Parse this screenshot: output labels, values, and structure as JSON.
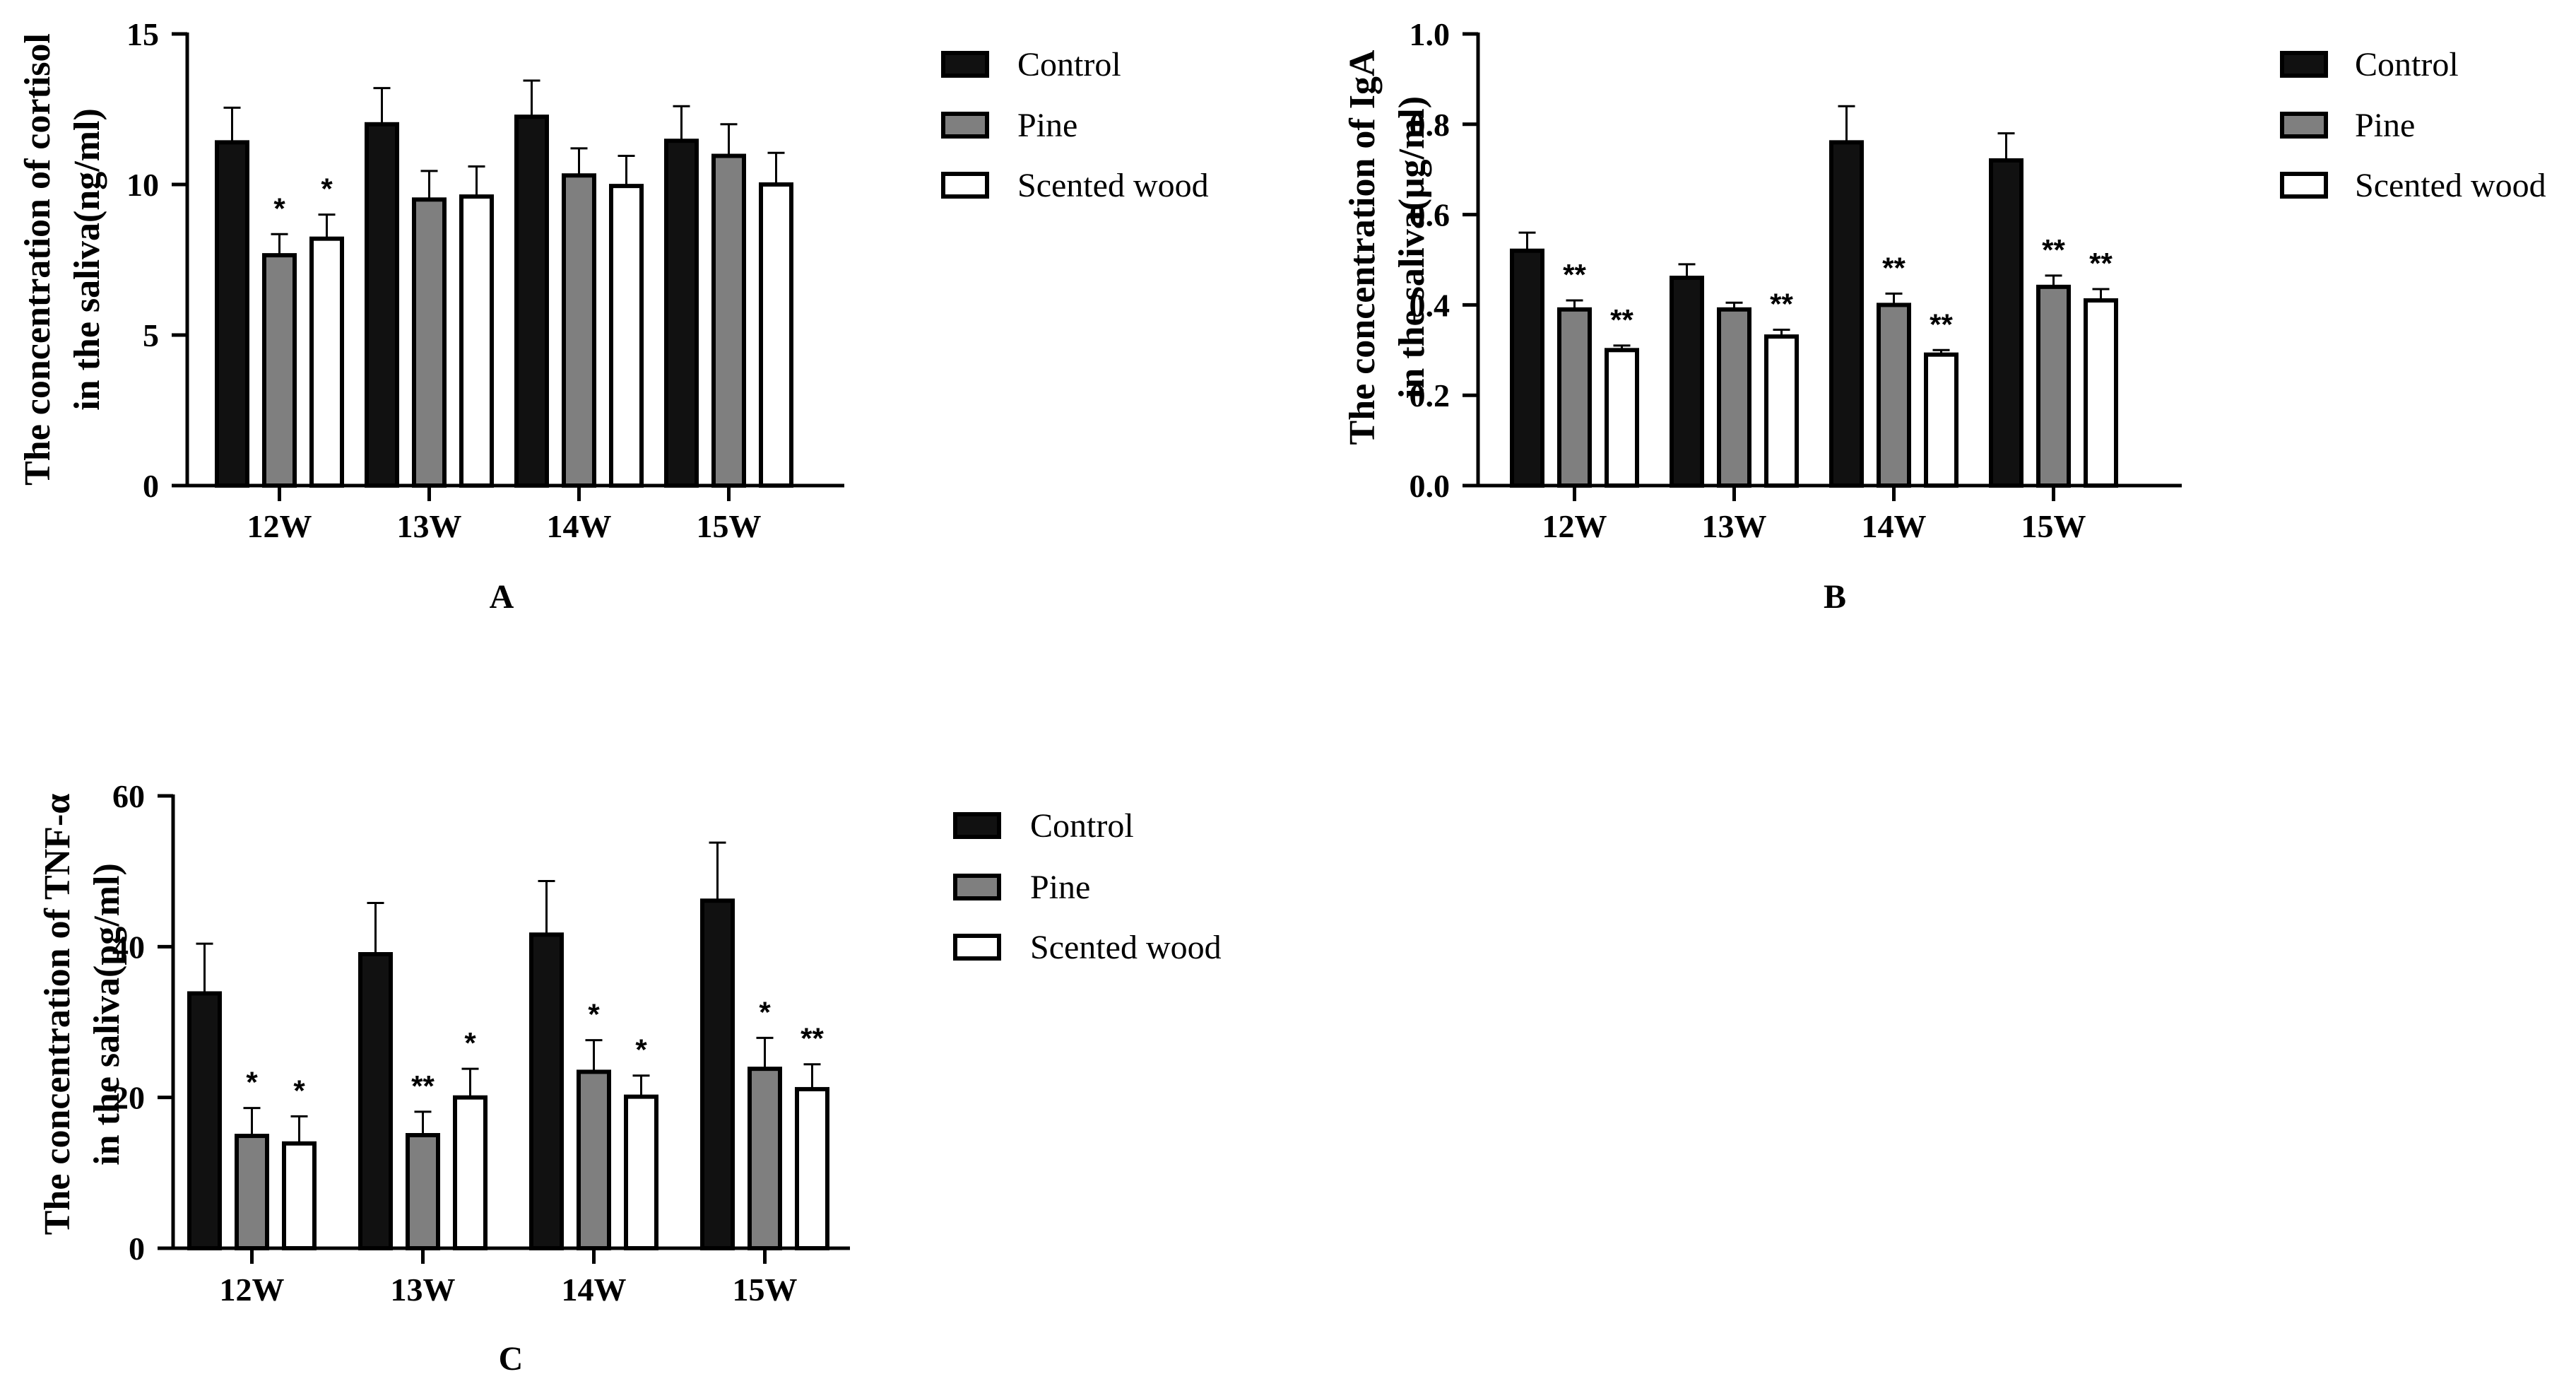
{
  "chart_data": [
    {
      "type": "bar",
      "panel": "A",
      "ylabel_lines": [
        "The concentration of cortisol",
        "in the saliva(ng/ml)"
      ],
      "ylim": [
        0,
        15
      ],
      "yticks": [
        0,
        5,
        10,
        15
      ],
      "ytick_labels": [
        "0",
        "5",
        "10",
        "15"
      ],
      "categories": [
        "12W",
        "13W",
        "14W",
        "15W"
      ],
      "series": [
        {
          "name": "Control",
          "values": [
            11.4,
            12.0,
            12.25,
            11.45
          ],
          "errors": [
            1.15,
            1.2,
            1.2,
            1.15
          ],
          "sig": [
            "",
            "",
            "",
            ""
          ]
        },
        {
          "name": "Pine",
          "values": [
            7.65,
            9.5,
            10.3,
            10.95
          ],
          "errors": [
            0.7,
            0.95,
            0.9,
            1.05
          ],
          "sig": [
            "*",
            "",
            "",
            ""
          ]
        },
        {
          "name": "Scented wood",
          "values": [
            8.2,
            9.6,
            9.95,
            10.0
          ],
          "errors": [
            0.8,
            1.0,
            1.0,
            1.05
          ],
          "sig": [
            "*",
            "",
            "",
            ""
          ]
        }
      ],
      "legend": [
        "Control",
        "Pine",
        "Scented wood"
      ]
    },
    {
      "type": "bar",
      "panel": "B",
      "ylabel_lines": [
        "The concentration of IgA",
        "in the saliva(μg/ml)"
      ],
      "ylim": [
        0,
        1.0
      ],
      "yticks": [
        0,
        0.2,
        0.4,
        0.6,
        0.8,
        1.0
      ],
      "ytick_labels": [
        "0.0",
        "0.2",
        "0.4",
        "0.6",
        "0.8",
        "1.0"
      ],
      "categories": [
        "12W",
        "13W",
        "14W",
        "15W"
      ],
      "series": [
        {
          "name": "Control",
          "values": [
            0.52,
            0.46,
            0.76,
            0.72
          ],
          "errors": [
            0.04,
            0.03,
            0.08,
            0.06
          ],
          "sig": [
            "",
            "",
            "",
            ""
          ]
        },
        {
          "name": "Pine",
          "values": [
            0.39,
            0.39,
            0.4,
            0.44
          ],
          "errors": [
            0.02,
            0.015,
            0.025,
            0.025
          ],
          "sig": [
            "**",
            "",
            "**",
            "**"
          ]
        },
        {
          "name": "Scented wood",
          "values": [
            0.3,
            0.33,
            0.29,
            0.41
          ],
          "errors": [
            0.01,
            0.015,
            0.01,
            0.025
          ],
          "sig": [
            "**",
            "**",
            "**",
            "**"
          ]
        }
      ],
      "legend": [
        "Control",
        "Pine",
        "Scented wood"
      ]
    },
    {
      "type": "bar",
      "panel": "C",
      "ylabel_lines": [
        "The concentration of TNF-α",
        "in the saliva(pg/ml)"
      ],
      "ylim": [
        0,
        60
      ],
      "yticks": [
        0,
        20,
        40,
        60
      ],
      "ytick_labels": [
        "0",
        "20",
        "40",
        "60"
      ],
      "categories": [
        "12W",
        "13W",
        "14W",
        "15W"
      ],
      "series": [
        {
          "name": "Control",
          "values": [
            33.8,
            39.0,
            41.6,
            46.1
          ],
          "errors": [
            6.6,
            6.8,
            7.1,
            7.7
          ],
          "sig": [
            "",
            "",
            "",
            ""
          ]
        },
        {
          "name": "Pine",
          "values": [
            14.9,
            15.0,
            23.4,
            23.8
          ],
          "errors": [
            3.7,
            3.1,
            4.2,
            4.1
          ],
          "sig": [
            "*",
            "**",
            "*",
            "*"
          ]
        },
        {
          "name": "Scented wood",
          "values": [
            13.9,
            20.0,
            20.1,
            21.1
          ],
          "errors": [
            3.6,
            3.8,
            2.8,
            3.3
          ],
          "sig": [
            "*",
            "*",
            "*",
            "**"
          ]
        }
      ],
      "legend": [
        "Control",
        "Pine",
        "Scented wood"
      ]
    }
  ],
  "colors": {
    "Control": "#111111",
    "Pine": "#7f7f7f",
    "Scented wood": "#ffffff",
    "stroke": "#000000"
  }
}
